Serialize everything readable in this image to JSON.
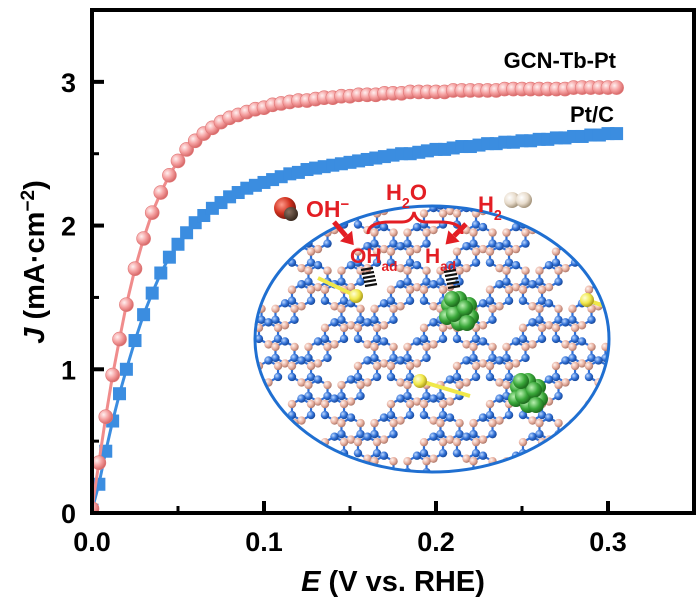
{
  "chart_data": {
    "type": "line",
    "xlabel": {
      "italic": "E",
      "rest": " (V vs. RHE)"
    },
    "ylabel": {
      "italic": "J",
      "rest": " (mA·cm",
      "sup": "−2",
      "close": ")"
    },
    "xlim": [
      0,
      0.35
    ],
    "ylim": [
      0,
      3.5
    ],
    "xticks": [
      0.0,
      0.1,
      0.2,
      0.3
    ],
    "xtick_labels": [
      "0.0",
      "0.1",
      "0.2",
      "0.3"
    ],
    "yticks": [
      0,
      1,
      2,
      3
    ],
    "ytick_labels": [
      "0",
      "1",
      "2",
      "3"
    ],
    "grid": false,
    "series": [
      {
        "name": "GCN-Tb-Pt",
        "color": "#f08c8c",
        "marker": "circle",
        "x": [
          0.0,
          0.004,
          0.008,
          0.012,
          0.016,
          0.02,
          0.025,
          0.03,
          0.035,
          0.04,
          0.045,
          0.05,
          0.055,
          0.06,
          0.065,
          0.07,
          0.075,
          0.08,
          0.085,
          0.09,
          0.095,
          0.1,
          0.105,
          0.11,
          0.115,
          0.12,
          0.125,
          0.13,
          0.135,
          0.14,
          0.145,
          0.15,
          0.155,
          0.16,
          0.165,
          0.17,
          0.175,
          0.18,
          0.185,
          0.19,
          0.195,
          0.2,
          0.205,
          0.21,
          0.215,
          0.22,
          0.225,
          0.23,
          0.235,
          0.24,
          0.245,
          0.25,
          0.255,
          0.26,
          0.265,
          0.27,
          0.275,
          0.28,
          0.285,
          0.29,
          0.295,
          0.3,
          0.305
        ],
        "y": [
          0.03,
          0.35,
          0.67,
          0.96,
          1.21,
          1.45,
          1.7,
          1.91,
          2.09,
          2.23,
          2.35,
          2.45,
          2.53,
          2.59,
          2.64,
          2.68,
          2.72,
          2.75,
          2.77,
          2.79,
          2.81,
          2.82,
          2.84,
          2.85,
          2.86,
          2.87,
          2.87,
          2.88,
          2.89,
          2.89,
          2.9,
          2.9,
          2.91,
          2.91,
          2.91,
          2.92,
          2.92,
          2.92,
          2.93,
          2.93,
          2.93,
          2.93,
          2.93,
          2.94,
          2.94,
          2.94,
          2.94,
          2.94,
          2.94,
          2.95,
          2.95,
          2.95,
          2.95,
          2.95,
          2.95,
          2.95,
          2.95,
          2.96,
          2.96,
          2.96,
          2.96,
          2.96,
          2.96
        ]
      },
      {
        "name": "Pt/C",
        "color": "#3b8de0",
        "marker": "square",
        "x": [
          0.0,
          0.004,
          0.008,
          0.012,
          0.016,
          0.02,
          0.025,
          0.03,
          0.035,
          0.04,
          0.045,
          0.05,
          0.055,
          0.06,
          0.065,
          0.07,
          0.075,
          0.08,
          0.085,
          0.09,
          0.095,
          0.1,
          0.105,
          0.11,
          0.115,
          0.12,
          0.125,
          0.13,
          0.135,
          0.14,
          0.145,
          0.15,
          0.155,
          0.16,
          0.165,
          0.17,
          0.175,
          0.18,
          0.185,
          0.19,
          0.195,
          0.2,
          0.205,
          0.21,
          0.215,
          0.22,
          0.225,
          0.23,
          0.235,
          0.24,
          0.245,
          0.25,
          0.255,
          0.26,
          0.265,
          0.27,
          0.275,
          0.28,
          0.285,
          0.29,
          0.295,
          0.3,
          0.305
        ],
        "y": [
          0.02,
          0.2,
          0.43,
          0.64,
          0.83,
          1.0,
          1.2,
          1.38,
          1.53,
          1.67,
          1.78,
          1.87,
          1.95,
          2.02,
          2.07,
          2.12,
          2.16,
          2.2,
          2.23,
          2.26,
          2.28,
          2.3,
          2.32,
          2.34,
          2.36,
          2.37,
          2.39,
          2.4,
          2.41,
          2.42,
          2.43,
          2.44,
          2.45,
          2.46,
          2.47,
          2.48,
          2.49,
          2.5,
          2.5,
          2.51,
          2.52,
          2.53,
          2.53,
          2.54,
          2.55,
          2.55,
          2.56,
          2.57,
          2.57,
          2.58,
          2.58,
          2.59,
          2.59,
          2.6,
          2.6,
          2.61,
          2.61,
          2.62,
          2.62,
          2.63,
          2.63,
          2.64,
          2.64
        ]
      }
    ],
    "inset": {
      "labels": {
        "oh_minus": {
          "base": "OH",
          "sup": "−"
        },
        "h2o": {
          "base": "H",
          "sub": "2",
          "tail": "O"
        },
        "h2": {
          "base": "H",
          "sub": "2"
        },
        "oh_ad": {
          "base": "OH",
          "sub": "ad"
        },
        "h_ad": {
          "base": "H",
          "sub": "ad"
        }
      },
      "colors": {
        "border": "#1f6fd1",
        "carbon": "#e8b0a0",
        "nitrogen": "#2f6fd6",
        "terbium": "#f0e84a",
        "platinum": "#3aa83a",
        "arrow": "#e31e24"
      }
    }
  }
}
